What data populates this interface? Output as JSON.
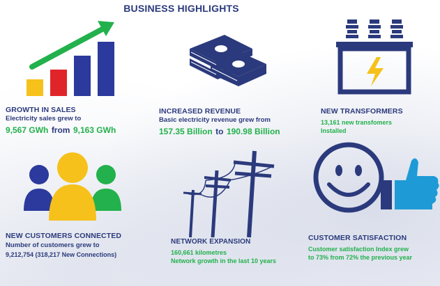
{
  "header": {
    "title": "BUSINESS HIGHLIGHTS"
  },
  "colors": {
    "navy": "#2b3a7c",
    "green": "#22b14c",
    "yellow": "#f6c11b",
    "red": "#e0252a",
    "blue": "#2b3a9c",
    "lightblue": "#1e9bd7"
  },
  "tiles": {
    "sales": {
      "icon": "bar-chart-growth-icon",
      "title": "GROWTH IN SALES",
      "line1": "Electricity sales grew to",
      "value_new": "9,567 GWh",
      "mid": "from",
      "value_old": "9,163 GWh"
    },
    "revenue": {
      "icon": "money-stack-icon",
      "title": "INCREASED REVENUE",
      "line1": "Basic electricity revenue grew from",
      "value_old": "157.35 Billion",
      "mid": "to",
      "value_new": "190.98 Billion"
    },
    "transformers": {
      "icon": "transformer-icon",
      "title": "NEW TRANSFORMERS",
      "line1": "13,161 new transfomers",
      "line2": "Installed"
    },
    "customers": {
      "icon": "people-group-icon",
      "title": "NEW CUSTOMERS CONNECTED",
      "line1": "Number of customers grew to",
      "line2": "9,212,754 (318,217 New Connections)"
    },
    "network": {
      "icon": "power-poles-icon",
      "title": "NETWORK EXPANSION",
      "line1": "160,661 kilometres",
      "line2": "Network growth in the last 10 years"
    },
    "satisfaction": {
      "icon": "smiley-thumbs-up-icon",
      "title": "CUSTOMER SATISFACTION",
      "line1": "Customer satisfaction Index grew",
      "line2": "to 73% from 72% the previous year"
    }
  }
}
